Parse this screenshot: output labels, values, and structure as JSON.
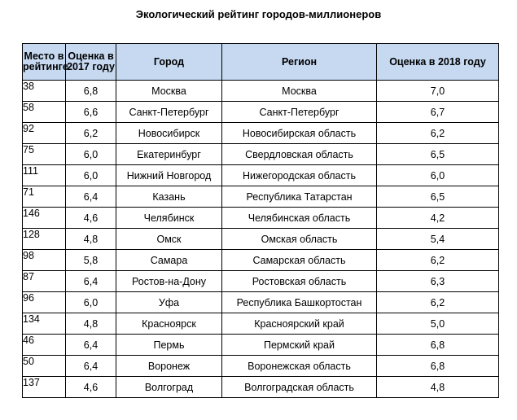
{
  "title": "Экологический рейтинг городов-миллионеров",
  "table": {
    "headers": {
      "rank": "Место в рейтинге",
      "score_2017": "Оценка в 2017 году",
      "city": "Город",
      "region": "Регион",
      "score_2018": "Оценка в 2018 году"
    },
    "rows": [
      {
        "rank": "38",
        "score_2017": "6,8",
        "city": "Москва",
        "region": "Москва",
        "score_2018": "7,0"
      },
      {
        "rank": "58",
        "score_2017": "6,6",
        "city": "Санкт-Петербург",
        "region": "Санкт-Петербург",
        "score_2018": "6,7"
      },
      {
        "rank": "92",
        "score_2017": "6,2",
        "city": "Новосибирск",
        "region": "Новосибирская область",
        "score_2018": "6,2"
      },
      {
        "rank": "75",
        "score_2017": "6,0",
        "city": "Екатеринбург",
        "region": "Свердловская область",
        "score_2018": "6,5"
      },
      {
        "rank": "111",
        "score_2017": "6,0",
        "city": "Нижний Новгород",
        "region": "Нижегородская область",
        "score_2018": "6,0"
      },
      {
        "rank": "71",
        "score_2017": "6,4",
        "city": "Казань",
        "region": "Республика Татарстан",
        "score_2018": "6,5"
      },
      {
        "rank": "146",
        "score_2017": "4,6",
        "city": "Челябинск",
        "region": "Челябинская область",
        "score_2018": "4,2"
      },
      {
        "rank": "128",
        "score_2017": "4,8",
        "city": "Омск",
        "region": "Омская область",
        "score_2018": "5,4"
      },
      {
        "rank": "98",
        "score_2017": "5,8",
        "city": "Самара",
        "region": "Самарская область",
        "score_2018": "6,2"
      },
      {
        "rank": "87",
        "score_2017": "6,4",
        "city": "Ростов-на-Дону",
        "region": "Ростовская область",
        "score_2018": "6,3"
      },
      {
        "rank": "96",
        "score_2017": "6,0",
        "city": "Уфа",
        "region": "Республика Башкортостан",
        "score_2018": "6,2"
      },
      {
        "rank": "134",
        "score_2017": "4,8",
        "city": "Красноярск",
        "region": "Красноярский край",
        "score_2018": "5,0"
      },
      {
        "rank": "46",
        "score_2017": "6,4",
        "city": "Пермь",
        "region": "Пермский край",
        "score_2018": "6,8"
      },
      {
        "rank": "50",
        "score_2017": "6,4",
        "city": "Воронеж",
        "region": "Воронежская область",
        "score_2018": "6,8"
      },
      {
        "rank": "137",
        "score_2017": "4,6",
        "city": "Волгоград",
        "region": "Волгоградская область",
        "score_2018": "4,8"
      }
    ]
  },
  "colors": {
    "header_background": "#c6d9f1",
    "border": "#000000"
  }
}
